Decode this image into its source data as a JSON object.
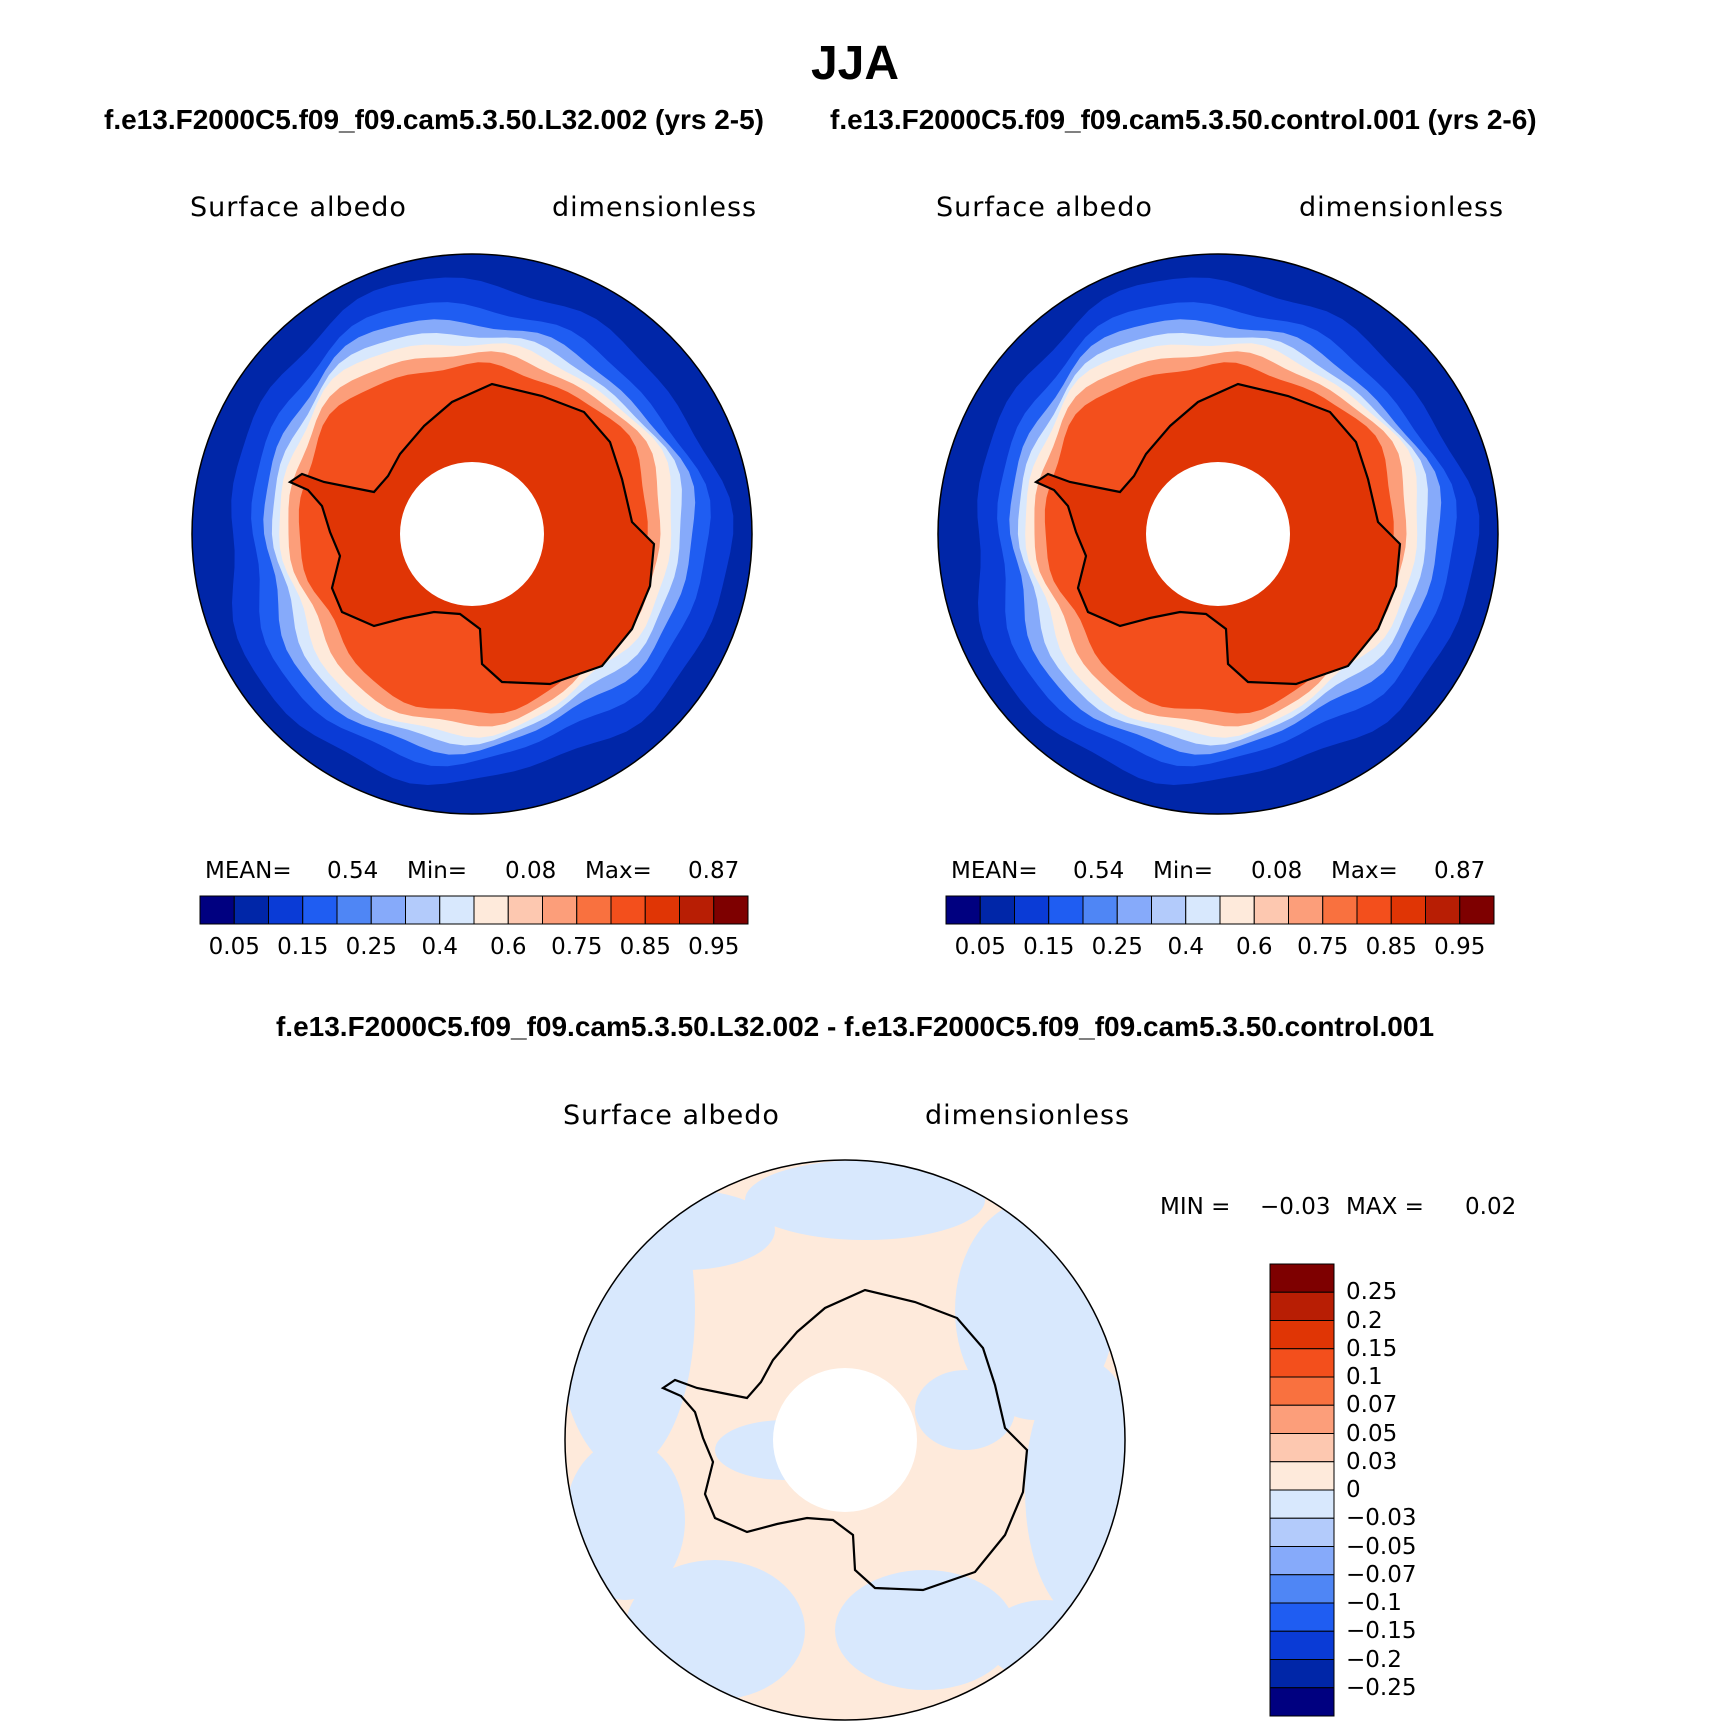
{
  "page_title": "JJA",
  "panels": [
    {
      "run_title": "f.e13.F2000C5.f09_f09.cam5.3.50.L32.002 (yrs 2-5)",
      "variable": "Surface albedo",
      "units": "dimensionless",
      "stats": {
        "mean_label": "MEAN=",
        "mean": "0.54",
        "min_label": "Min=",
        "min": "0.08",
        "max_label": "Max=",
        "max": "0.87"
      }
    },
    {
      "run_title": "f.e13.F2000C5.f09_f09.cam5.3.50.control.001 (yrs 2-6)",
      "variable": "Surface albedo",
      "units": "dimensionless",
      "stats": {
        "mean_label": "MEAN=",
        "mean": "0.54",
        "min_label": "Min=",
        "min": "0.08",
        "max_label": "Max=",
        "max": "0.87"
      }
    }
  ],
  "colorbar_abs": {
    "colors": [
      "#000080",
      "#0026a8",
      "#0a3bd6",
      "#1f5df2",
      "#4f86f5",
      "#86aafa",
      "#b3cbfb",
      "#d8e8fd",
      "#feeadb",
      "#fdc8b0",
      "#fc9e7a",
      "#f9713f",
      "#f34f1c",
      "#e03505",
      "#b81e04",
      "#7e0000"
    ],
    "tick_labels": [
      "0.05",
      "0.15",
      "0.25",
      "0.4",
      "0.6",
      "0.75",
      "0.85",
      "0.95"
    ]
  },
  "difference": {
    "title": "f.e13.F2000C5.f09_f09.cam5.3.50.L32.002 - f.e13.F2000C5.f09_f09.cam5.3.50.control.001",
    "variable": "Surface albedo",
    "units": "dimensionless",
    "min_label": "MIN =",
    "min": "−0.03",
    "max_label": "MAX =",
    "max": "0.02"
  },
  "colorbar_diff": {
    "colors": [
      "#7e0000",
      "#b81e04",
      "#e03505",
      "#f34f1c",
      "#f9713f",
      "#fc9e7a",
      "#fdc8b0",
      "#feeadb",
      "#d8e8fd",
      "#b3cbfb",
      "#86aafa",
      "#4f86f5",
      "#1f5df2",
      "#0a3bd6",
      "#0026a8",
      "#000080"
    ],
    "tick_labels": [
      "0.25",
      "0.2",
      "0.15",
      "0.1",
      "0.07",
      "0.05",
      "0.03",
      "0",
      "−0.03",
      "−0.05",
      "−0.07",
      "−0.1",
      "−0.15",
      "−0.2",
      "−0.25"
    ]
  }
}
